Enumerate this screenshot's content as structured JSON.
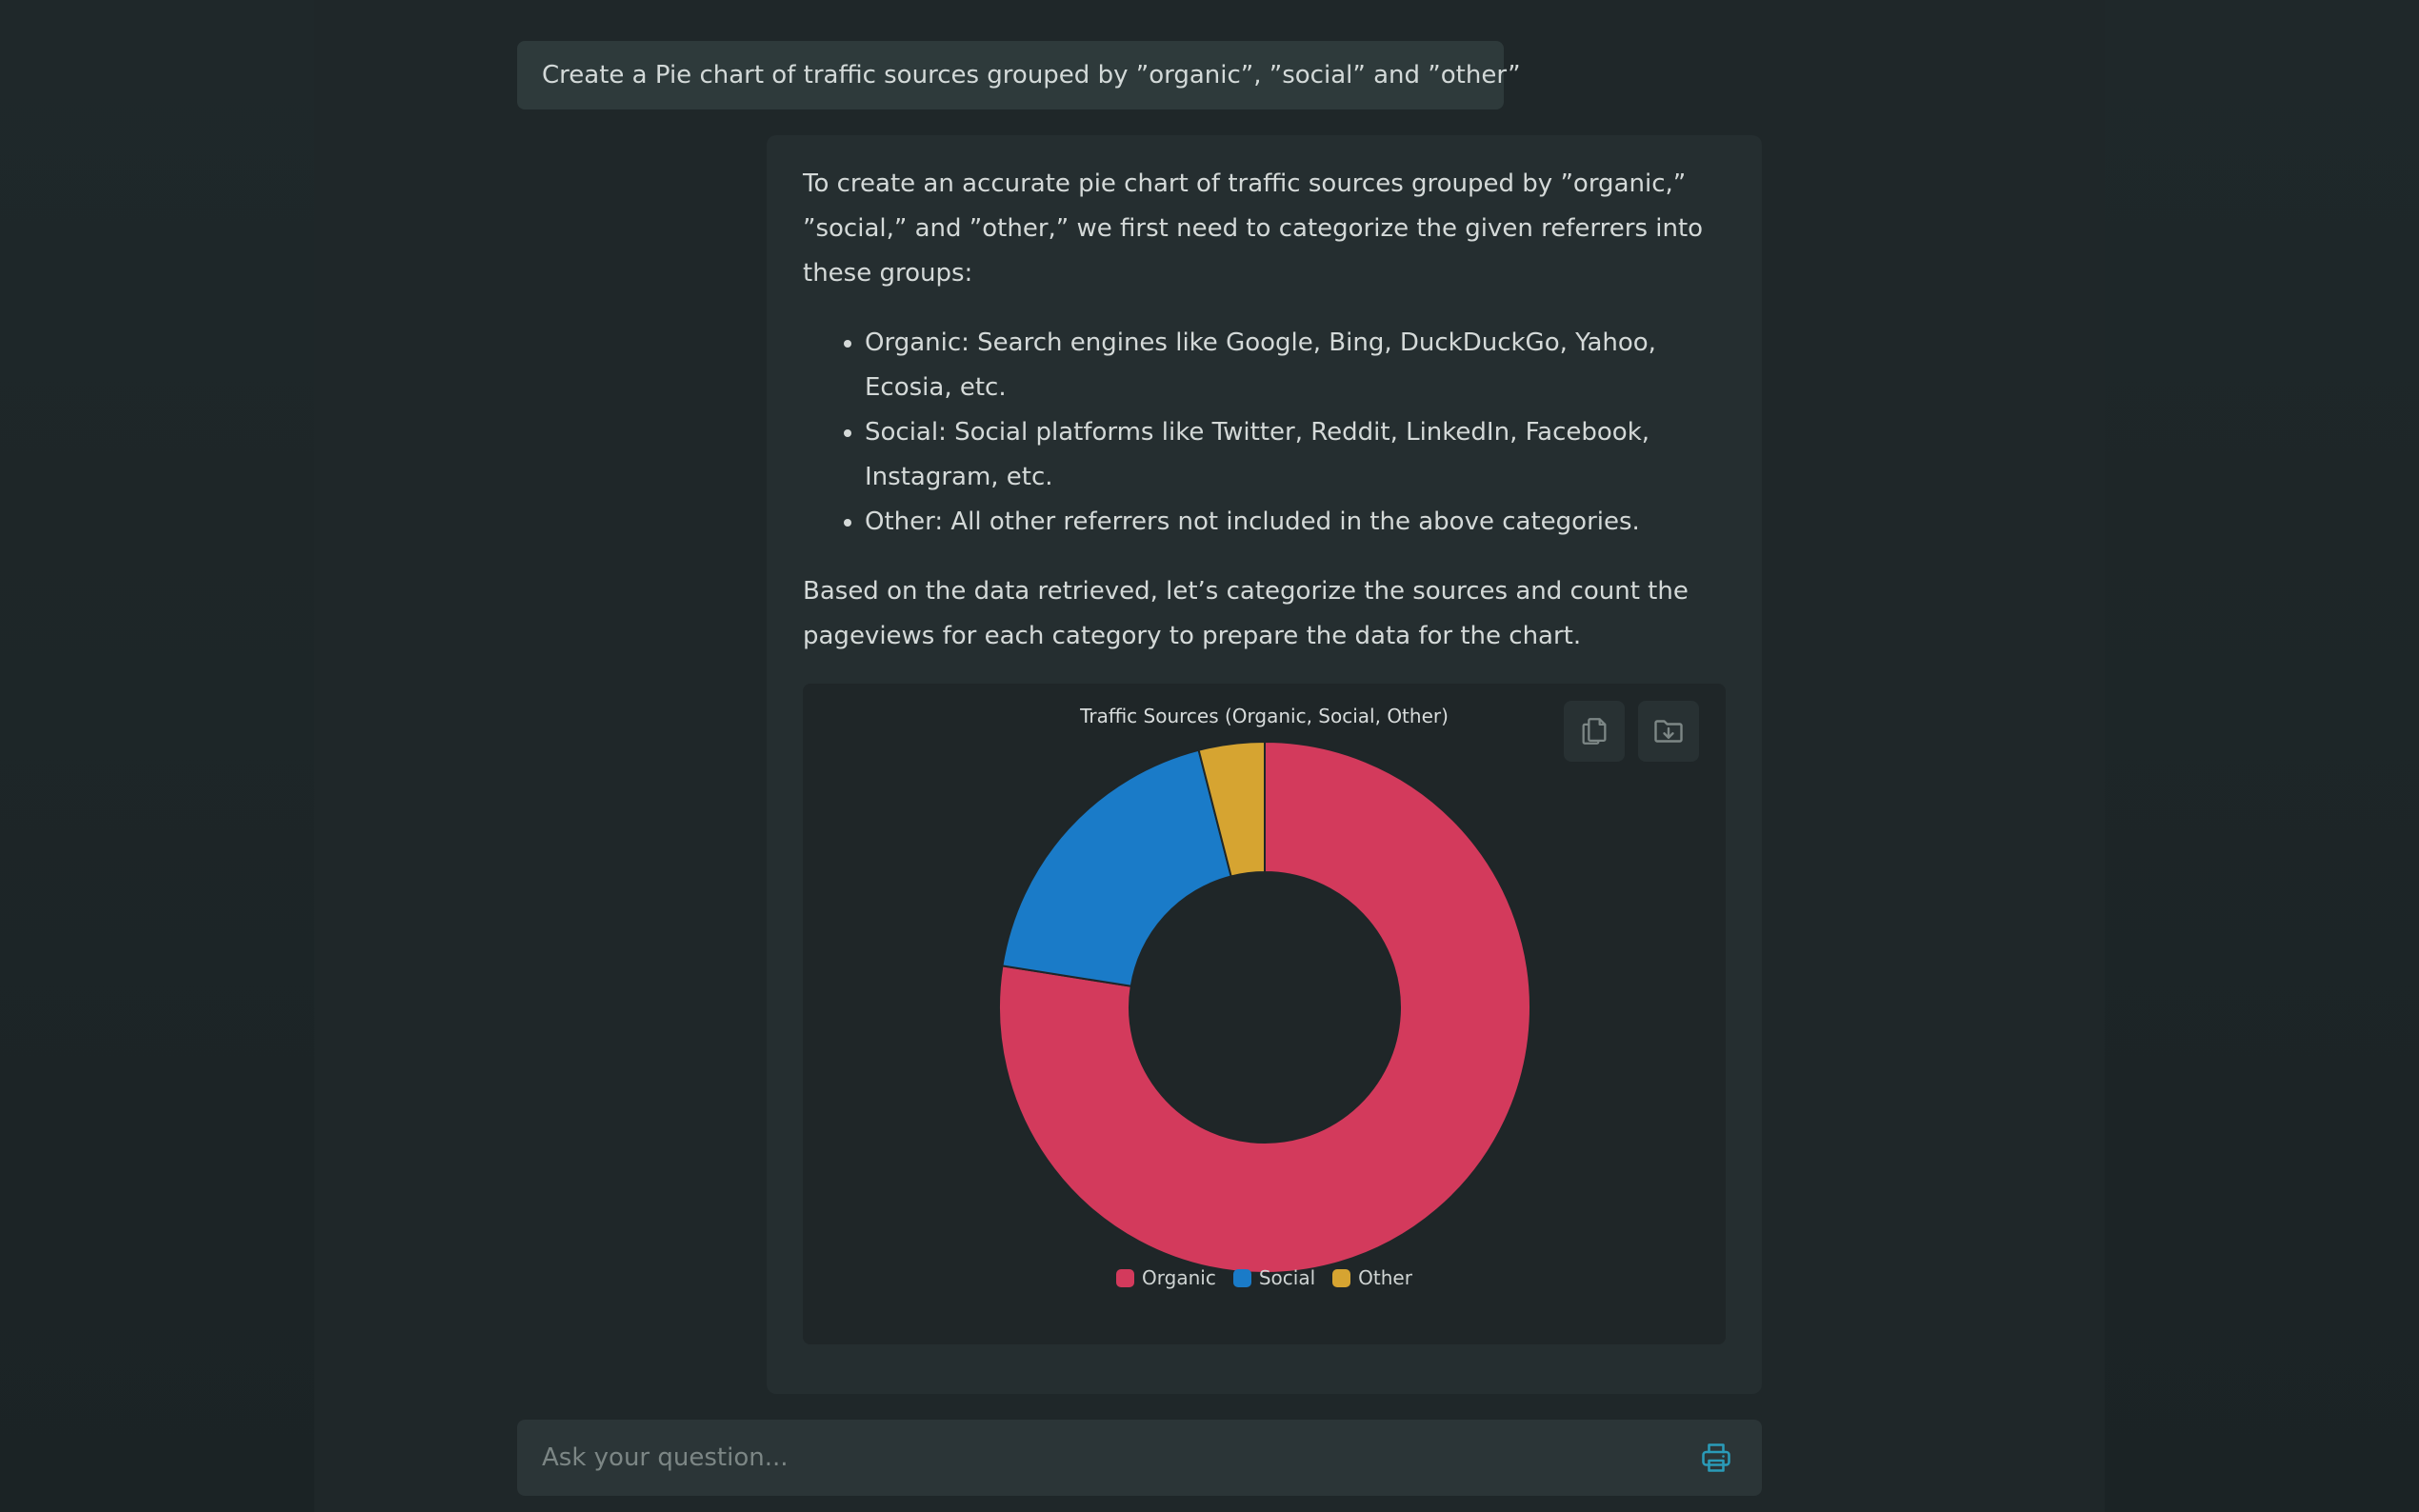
{
  "user_message": "Create a Pie chart of traffic sources grouped by ”organic”, ”social” and ”other”",
  "assistant": {
    "intro": "To create an accurate pie chart of traffic sources grouped by ”organic,” ”social,” and ”other,” we first need to categorize the given referrers into these groups:",
    "bullets": [
      "Organic: Search engines like Google, Bing, DuckDuckGo, Yahoo, Ecosia, etc.",
      "Social: Social platforms like Twitter, Reddit, LinkedIn, Facebook, Instagram, etc.",
      "Other: All other referrers not included in the above categories."
    ],
    "outro": "Based on the data retrieved, let’s categorize the sources and count the pageviews for each category to prepare the data for the chart."
  },
  "chart_data": {
    "type": "pie",
    "variant": "doughnut",
    "title": "Traffic Sources (Organic, Social, Other)",
    "categories": [
      "Organic",
      "Social",
      "Other"
    ],
    "values": [
      77.5,
      18.5,
      4.0
    ],
    "colors": [
      "#d33a5c",
      "#1a7bc8",
      "#d6a431"
    ],
    "legend_position": "bottom"
  },
  "input": {
    "placeholder": "Ask your question..."
  },
  "icons": {
    "copy": "copy-icon",
    "download": "download-folder-icon",
    "send": "printer-icon"
  }
}
